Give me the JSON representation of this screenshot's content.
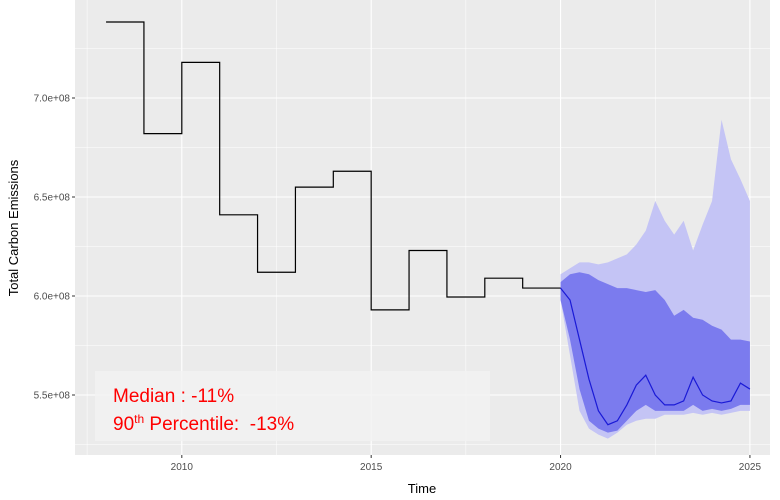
{
  "chart_data": {
    "type": "line",
    "xlabel": "Time",
    "ylabel": "Total Carbon Emissions",
    "xlim": [
      2007.18,
      2025.53
    ],
    "ylim": [
      519700000,
      749500000
    ],
    "xticks": [
      2010,
      2015,
      2020,
      2025
    ],
    "yticks": [
      {
        "value": 550000000,
        "label": "5.5e+08"
      },
      {
        "value": 600000000,
        "label": "6.0e+08"
      },
      {
        "value": 650000000,
        "label": "6.5e+08"
      },
      {
        "value": 700000000,
        "label": "7.0e+08"
      }
    ],
    "grid": true,
    "minor_grid": true,
    "background": "#ebebeb",
    "series": [
      {
        "color": "#000000",
        "shape": "hv",
        "x": [
          2008,
          2009,
          2010,
          2011,
          2012,
          2013,
          2014,
          2015,
          2016,
          2017,
          2018,
          2019,
          2020
        ],
        "values": [
          738400000,
          682000000,
          718000000,
          641000000,
          612000000,
          655000000,
          663000000,
          593000000,
          623000000,
          599500000,
          609000000,
          604000000,
          604000000
        ]
      },
      {
        "color": "#1a1ad6",
        "shape": "linear",
        "x": [
          2020,
          2020.25,
          2020.5,
          2020.75,
          2021,
          2021.25,
          2021.5,
          2021.75,
          2022,
          2022.25,
          2022.5,
          2022.75,
          2023,
          2023.25,
          2023.5,
          2023.75,
          2024,
          2024.25,
          2024.5,
          2024.75,
          2025
        ],
        "values": [
          604000000,
          598000000,
          578000000,
          558000000,
          542000000,
          535000000,
          537000000,
          545000000,
          555000000,
          560000000,
          550000000,
          545000000,
          545000000,
          547000000,
          559000000,
          550000000,
          547000000,
          546000000,
          547000000,
          556000000,
          553000000
        ]
      }
    ],
    "bands": [
      {
        "color": "#c4c4f5",
        "x": [
          2020,
          2020.25,
          2020.5,
          2020.75,
          2021,
          2021.25,
          2021.5,
          2021.75,
          2022,
          2022.25,
          2022.5,
          2022.75,
          2023,
          2023.25,
          2023.5,
          2023.75,
          2024,
          2024.25,
          2024.5,
          2024.75,
          2025
        ],
        "upper": [
          611000000,
          614000000,
          617000000,
          617000000,
          616000000,
          617000000,
          619000000,
          621000000,
          626000000,
          633000000,
          648000000,
          638000000,
          631000000,
          638000000,
          623000000,
          636000000,
          648000000,
          689000000,
          669000000,
          659000000,
          648000000
        ],
        "lower": [
          598000000,
          570000000,
          542000000,
          533000000,
          530000000,
          528000000,
          531000000,
          535000000,
          537000000,
          538000000,
          538000000,
          540000000,
          540000000,
          540000000,
          541000000,
          540000000,
          541000000,
          540000000,
          541000000,
          542000000,
          542000000
        ]
      },
      {
        "color": "#7b7bee",
        "x": [
          2020,
          2020.25,
          2020.5,
          2020.75,
          2021,
          2021.25,
          2021.5,
          2021.75,
          2022,
          2022.25,
          2022.5,
          2022.75,
          2023,
          2023.25,
          2023.5,
          2023.75,
          2024,
          2024.25,
          2024.5,
          2024.75,
          2025
        ],
        "upper": [
          607000000,
          611000000,
          612000000,
          611000000,
          608000000,
          606000000,
          604000000,
          604000000,
          603000000,
          602000000,
          603000000,
          598000000,
          590000000,
          593000000,
          589000000,
          588000000,
          585000000,
          583000000,
          578000000,
          578000000,
          577000000
        ],
        "lower": [
          598000000,
          578000000,
          553000000,
          537000000,
          533000000,
          531000000,
          532000000,
          537000000,
          542000000,
          545000000,
          542000000,
          542000000,
          542000000,
          542000000,
          545000000,
          542000000,
          543000000,
          542000000,
          543000000,
          545000000,
          545000000
        ]
      }
    ],
    "annotation": {
      "median": "Median : -11%",
      "percentile": [
        "90",
        "th",
        " Percentile:  -13%"
      ]
    }
  }
}
